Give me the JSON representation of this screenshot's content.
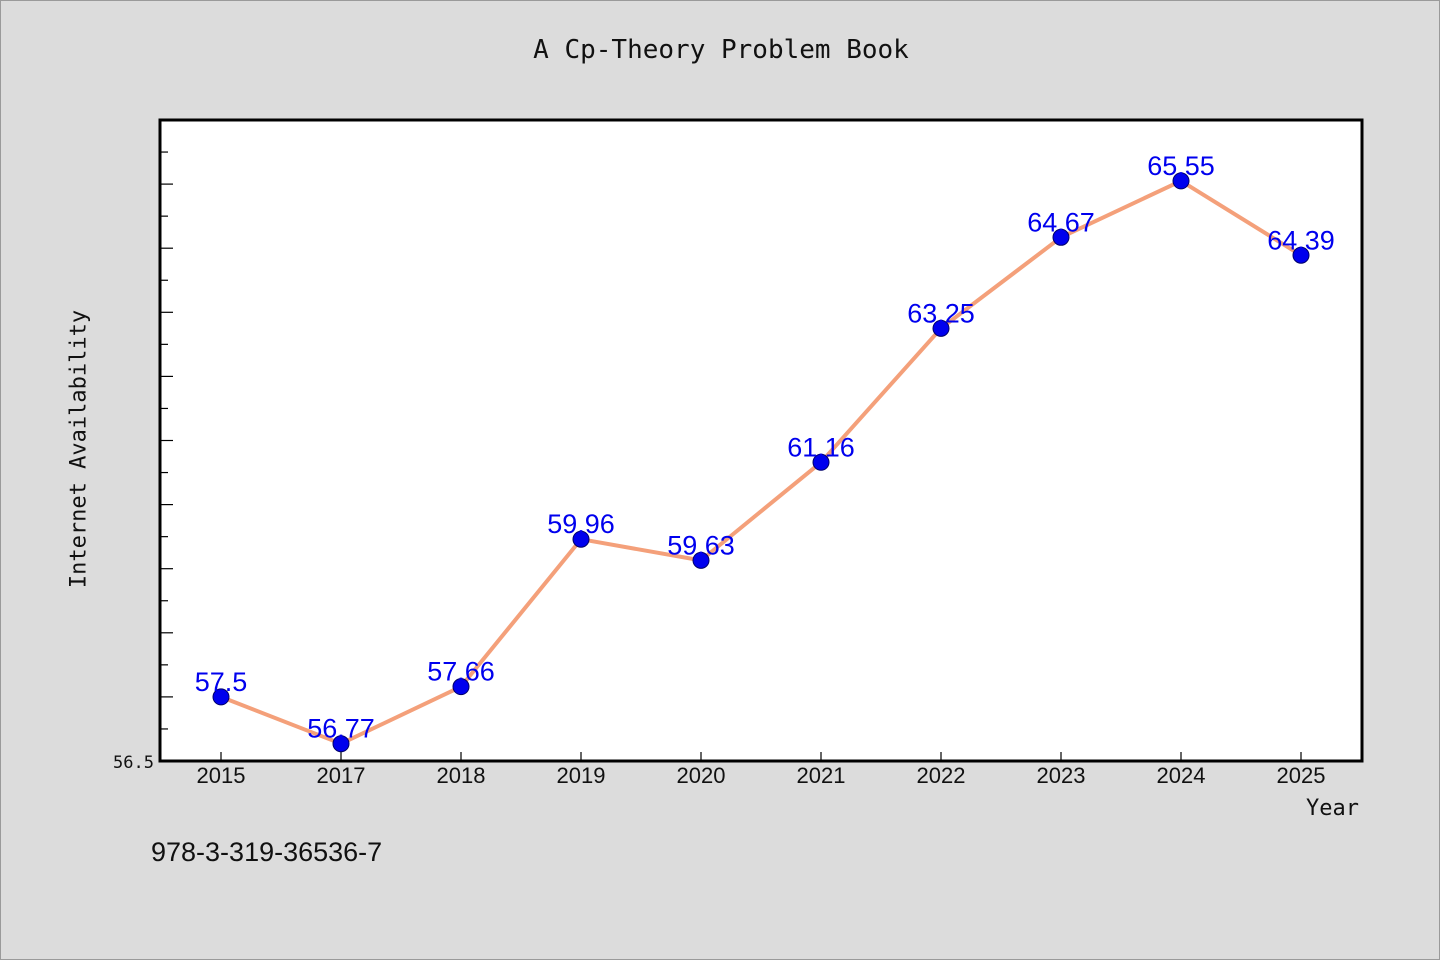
{
  "figure": {
    "background": "#dcdcdc",
    "footer_code": "978-3-319-36536-7"
  },
  "chart_data": {
    "type": "line",
    "title": "A Cp-Theory Problem Book",
    "xlabel": "Year",
    "ylabel": "Internet Availability",
    "categories": [
      "2015",
      "2017",
      "2018",
      "2019",
      "2020",
      "2021",
      "2022",
      "2023",
      "2024",
      "2025"
    ],
    "series": [
      {
        "values": [
          57.5,
          56.77,
          57.66,
          59.96,
          59.63,
          61.16,
          63.25,
          64.67,
          65.55,
          64.39
        ],
        "data_labels": [
          "57.5",
          "56.77",
          "57.66",
          "59.96",
          "59.63",
          "61.16",
          "63.25",
          "64.67",
          "65.55",
          "64.39"
        ],
        "line_color": "#f4a07a",
        "marker_color": "#0000ee",
        "label_color": "#0000ee"
      }
    ],
    "ylim": [
      56.5,
      66.5
    ],
    "ytick_labels": [
      "56.5"
    ],
    "grid": false,
    "legend": "none"
  }
}
